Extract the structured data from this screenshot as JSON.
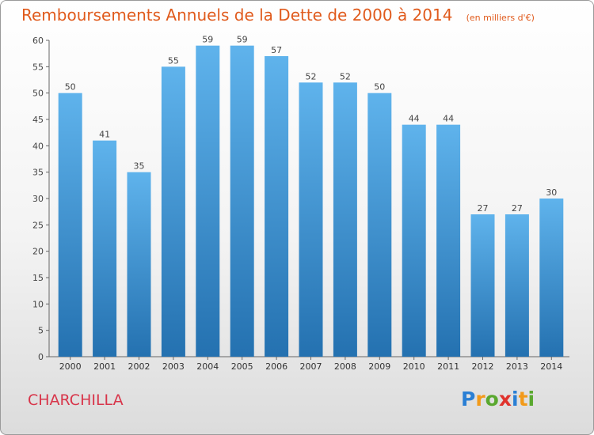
{
  "title": "Remboursements Annuels de la Dette de 2000 à 2014",
  "unit_note": "(en milliers d'€)",
  "commune": "CHARCHILLA",
  "logo": {
    "letters": [
      "P",
      "r",
      "o",
      "x",
      "i",
      "t",
      "i"
    ],
    "colors": [
      "#2a7fd4",
      "#f29a1a",
      "#5aa82f",
      "#e0322c",
      "#2a7fd4",
      "#f29a1a",
      "#5aa82f"
    ]
  },
  "colors": {
    "bar_light": "#5fb3ec",
    "bar_dark": "#2471b0",
    "title": "#e05a1c",
    "commune": "#d8354a"
  },
  "chart_data": {
    "type": "bar",
    "categories": [
      "2000",
      "2001",
      "2002",
      "2003",
      "2004",
      "2005",
      "2006",
      "2007",
      "2008",
      "2009",
      "2010",
      "2011",
      "2012",
      "2013",
      "2014"
    ],
    "values": [
      50,
      41,
      35,
      55,
      59,
      59,
      57,
      52,
      52,
      50,
      44,
      44,
      27,
      27,
      30
    ],
    "ylim": [
      0,
      60
    ],
    "yticks": [
      0,
      5,
      10,
      15,
      20,
      25,
      30,
      35,
      40,
      45,
      50,
      55,
      60
    ],
    "grid": false
  }
}
